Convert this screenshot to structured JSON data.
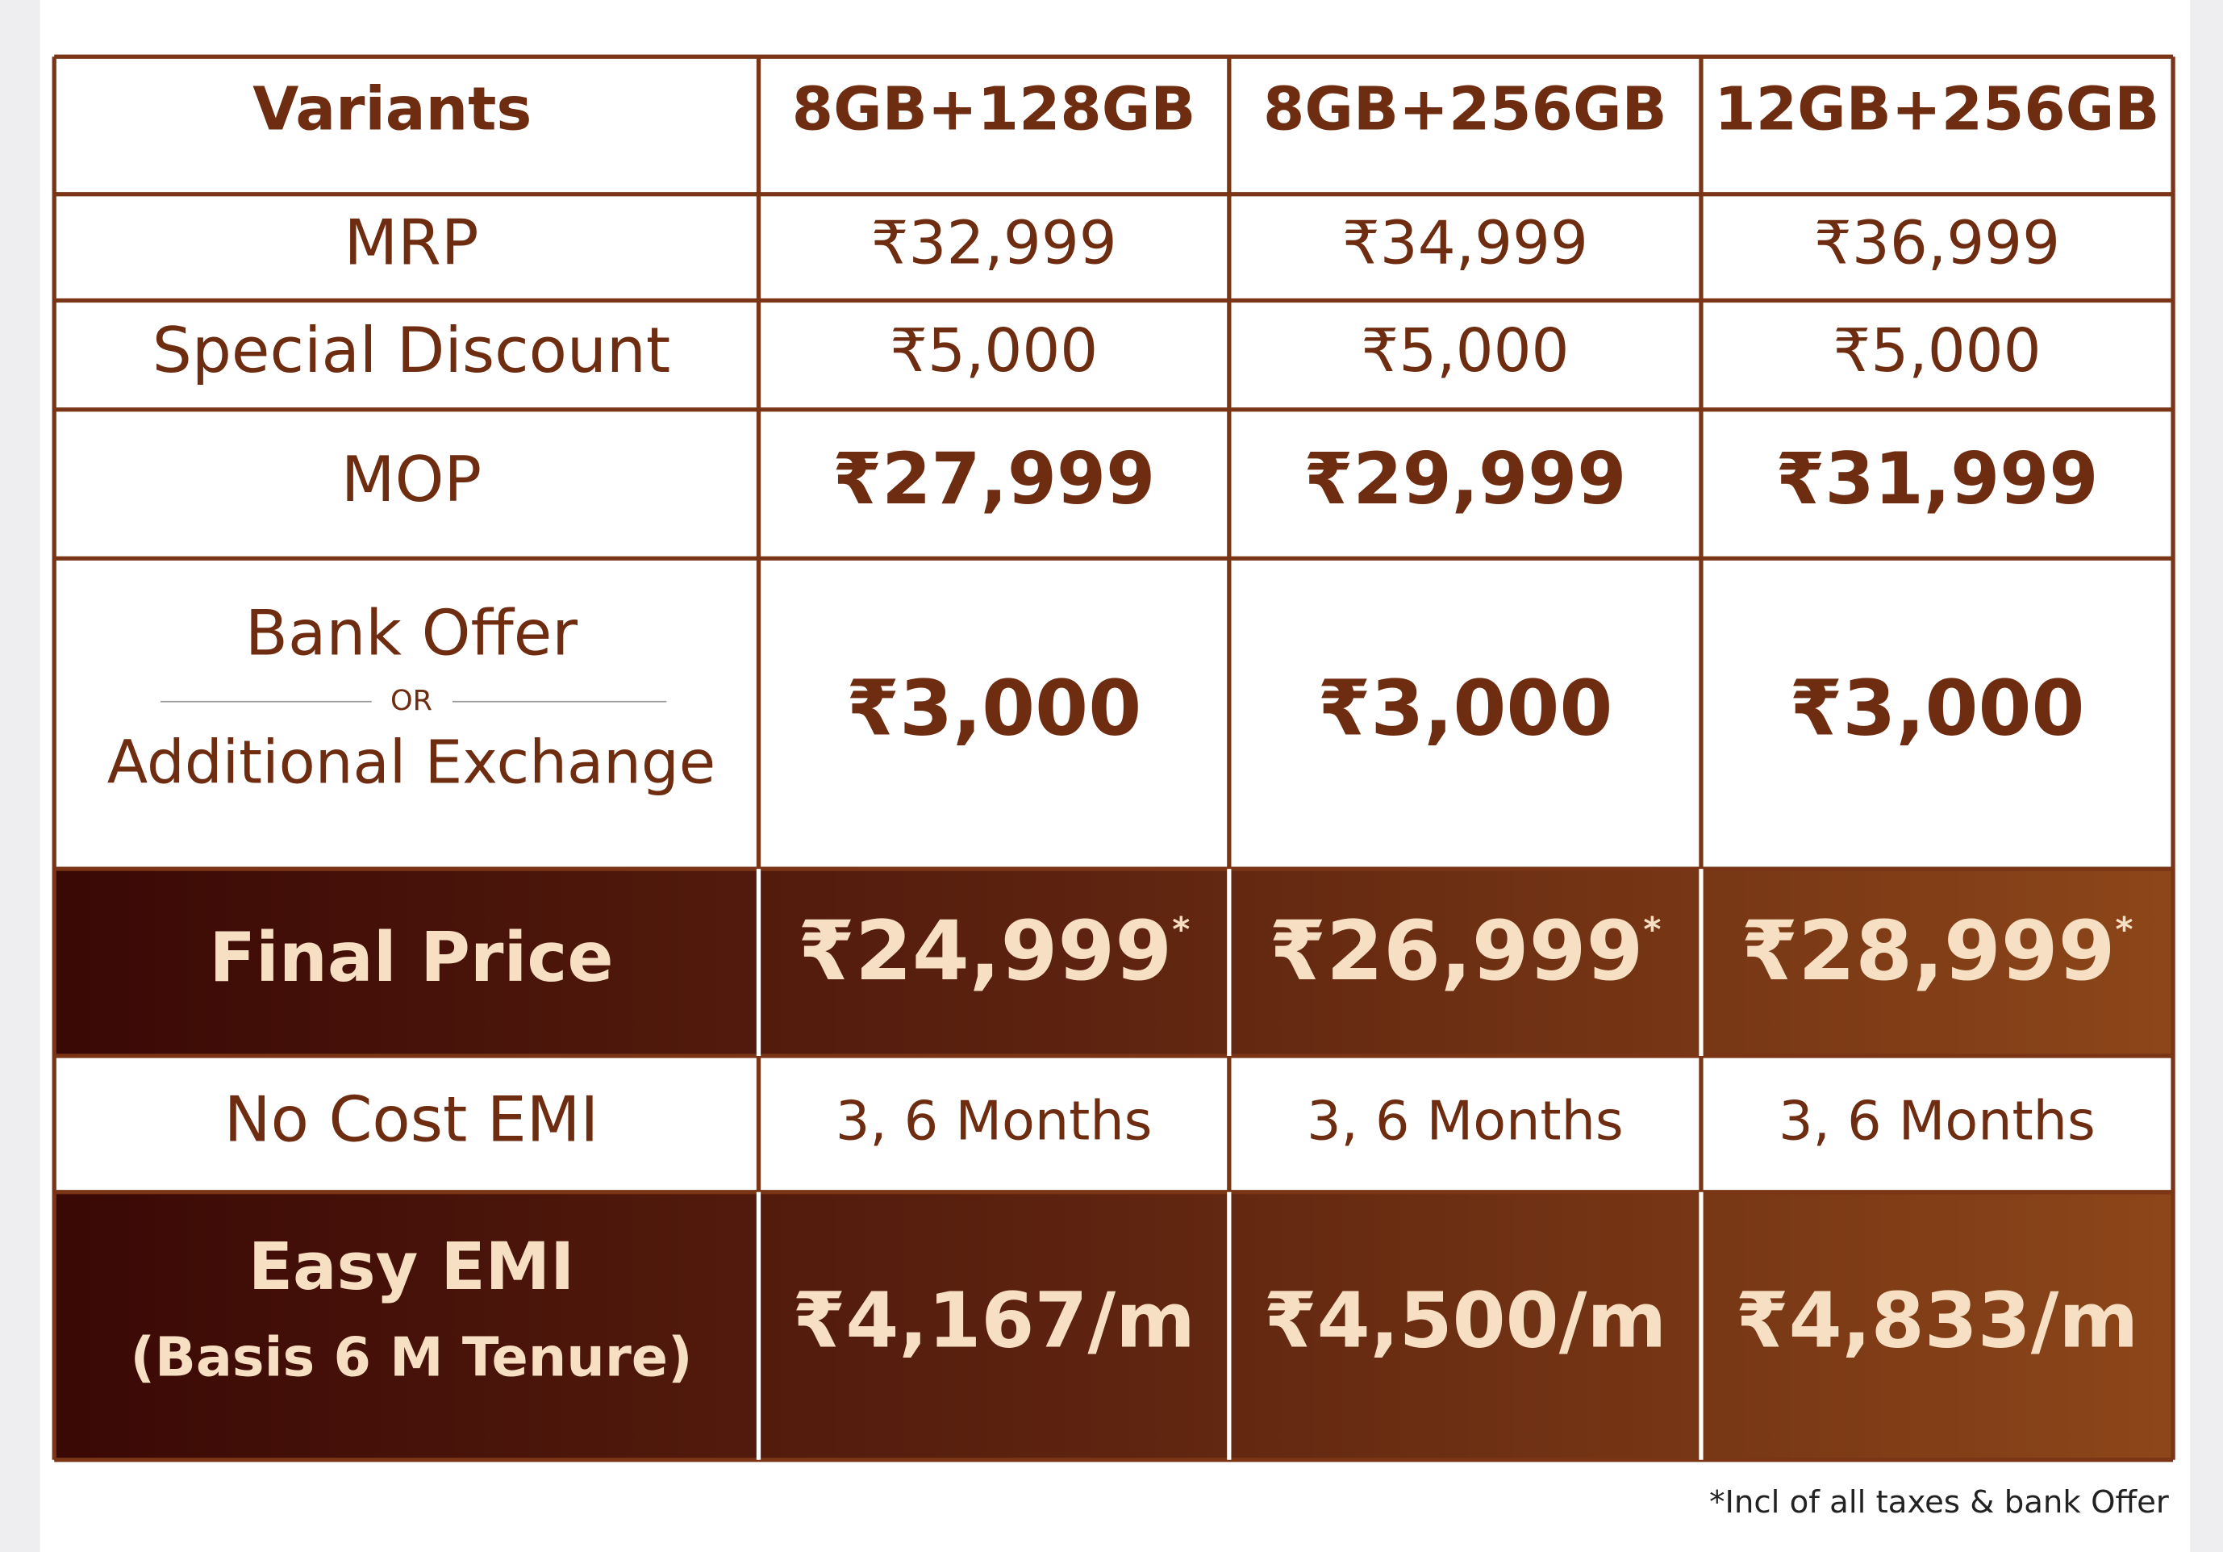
{
  "table": {
    "header": [
      "Variants",
      "8GB+128GB",
      "8GB+256GB",
      "12GB+256GB"
    ],
    "rows": [
      {
        "label": [
          "MRP"
        ],
        "cells": [
          "₹32,999",
          "₹34,999",
          "₹36,999"
        ]
      },
      {
        "label": [
          "Special Discount"
        ],
        "cells": [
          "₹5,000",
          "₹5,000",
          "₹5,000"
        ]
      },
      {
        "label": [
          "MOP"
        ],
        "cells": [
          "₹27,999",
          "₹29,999",
          "₹31,999"
        ]
      },
      {
        "label": [
          "Bank Offer",
          "OR",
          "Additional Exchange"
        ],
        "cells": [
          "₹3,000",
          "₹3,000",
          "₹3,000"
        ]
      },
      {
        "label": [
          "Final Price"
        ],
        "cells": [
          "₹24,999",
          "₹26,999",
          "₹28,999"
        ],
        "marker": "*"
      },
      {
        "label": [
          "No Cost EMI"
        ],
        "cells": [
          "3, 6 Months",
          "3, 6 Months",
          "3, 6 Months"
        ]
      },
      {
        "label": [
          "Easy EMI",
          "(Basis 6 M Tenure)"
        ],
        "cells": [
          "₹4,167/m",
          "₹4,500/m",
          "₹4,833/m"
        ]
      }
    ]
  },
  "footnote": "*Incl of all taxes & bank Offer"
}
